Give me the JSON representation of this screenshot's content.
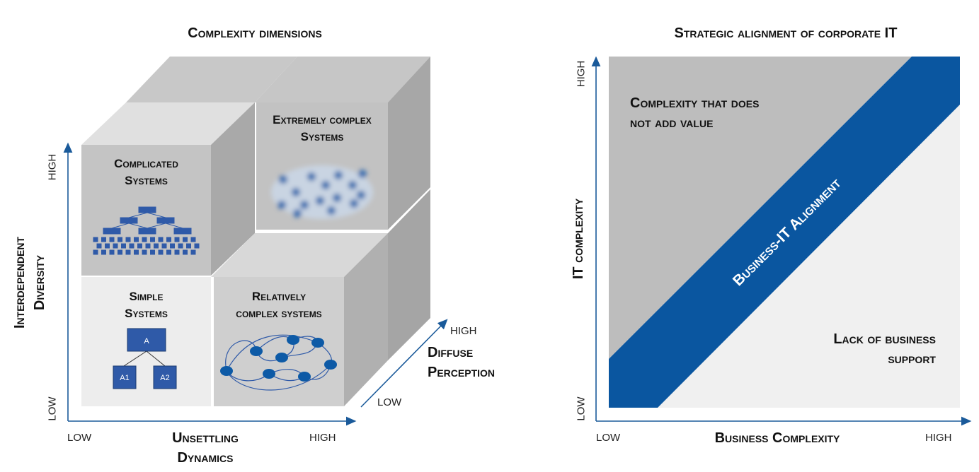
{
  "left": {
    "title": "Complexity dimensions",
    "y_axis": {
      "label_line1": "Interdependent",
      "label_line2": "Diversity",
      "high": "HIGH",
      "low": "LOW"
    },
    "x_axis": {
      "label_line1": "Unsettling",
      "label_line2": "Dynamics",
      "low": "LOW",
      "high": "HIGH"
    },
    "z_axis": {
      "label_line1": "Diffuse",
      "label_line2": "Perception",
      "low": "LOW",
      "high": "HIGH"
    },
    "cells": {
      "complicated": {
        "line1": "Complicated",
        "line2": "Systems"
      },
      "extremely": {
        "line1": "Extremely complex",
        "line2": "Systems"
      },
      "simple": {
        "line1": "Simple",
        "line2": "Systems",
        "node_root": "A",
        "node_left": "A1",
        "node_right": "A2"
      },
      "relatively": {
        "line1": "Relatively",
        "line2": "complex systems"
      }
    }
  },
  "right": {
    "title": "Strategic alignment of corporate IT",
    "y_axis": {
      "label": "IT complexity",
      "high": "HIGH",
      "low": "LOW"
    },
    "x_axis": {
      "label": "Business Complexity",
      "low": "LOW",
      "high": "HIGH"
    },
    "upper_region": {
      "line1": "Complexity that does",
      "line2": "not add value"
    },
    "band_label": "Business-IT Alignment",
    "lower_region": {
      "line1": "Lack of business",
      "line2": "support"
    }
  },
  "colors": {
    "blue": "#0a56a0",
    "axis": "#1a5a9a",
    "node": "#2f5aa8",
    "gray_dark": "#bdbdbd",
    "gray_light": "#f0f0f0"
  }
}
